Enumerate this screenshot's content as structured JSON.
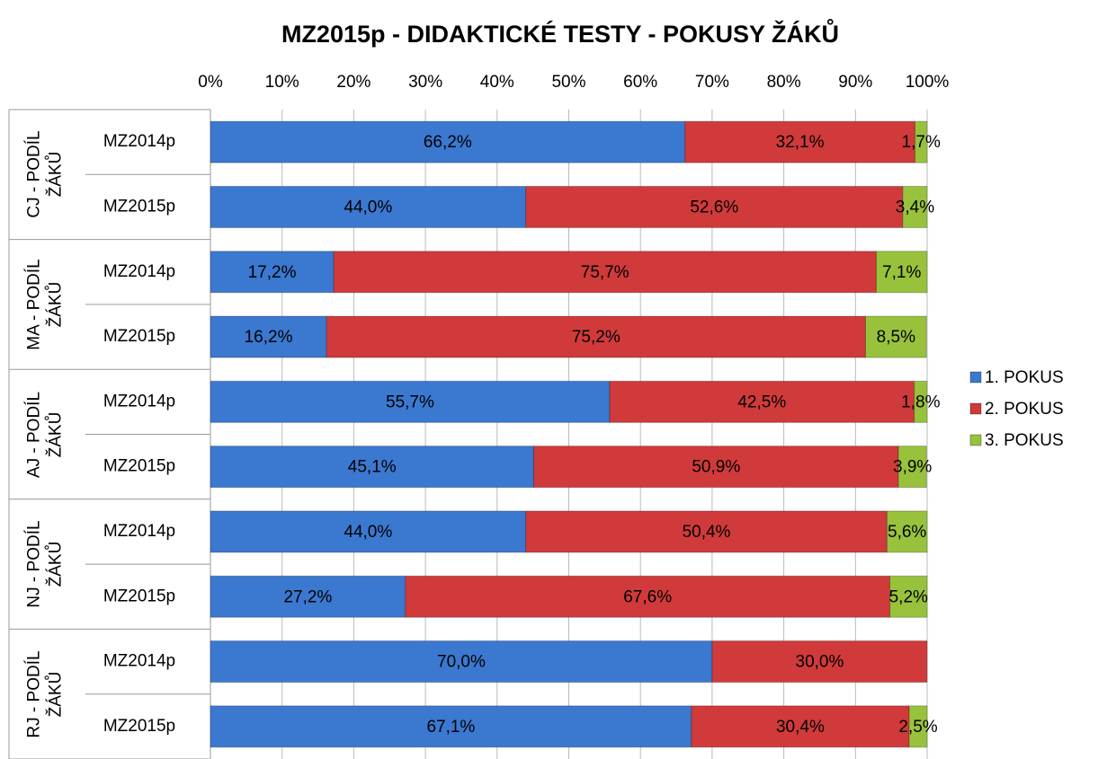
{
  "chart_data": {
    "type": "bar",
    "orientation": "horizontal",
    "stacked": true,
    "title": "MZ2015p - DIDAKTICKÉ TESTY - POKUSY ŽÁKŮ",
    "groups": [
      "CJ - PODÍL ŽÁKŮ",
      "MA - PODÍL ŽÁKŮ",
      "AJ - PODÍL ŽÁKŮ",
      "NJ - PODÍL ŽÁKŮ",
      "RJ - PODÍL ŽÁKŮ"
    ],
    "categories": [
      "MZ2014p",
      "MZ2015p",
      "MZ2014p",
      "MZ2015p",
      "MZ2014p",
      "MZ2015p",
      "MZ2014p",
      "MZ2015p",
      "MZ2014p",
      "MZ2015p"
    ],
    "series": [
      {
        "name": "1. POKUS",
        "color": "#3b78d0",
        "values": [
          66.2,
          44.0,
          17.2,
          16.2,
          55.7,
          45.1,
          44.0,
          27.2,
          70.0,
          67.1
        ],
        "value_labels": [
          "66,2%",
          "44,0%",
          "17,2%",
          "16,2%",
          "55,7%",
          "45,1%",
          "44,0%",
          "27,2%",
          "70,0%",
          "67,1%"
        ]
      },
      {
        "name": "2. POKUS",
        "color": "#d03a3a",
        "values": [
          32.1,
          52.6,
          75.7,
          75.2,
          42.5,
          50.9,
          50.4,
          67.6,
          30.0,
          30.4
        ],
        "value_labels": [
          "32,1%",
          "52,6%",
          "75,7%",
          "75,2%",
          "42,5%",
          "50,9%",
          "50,4%",
          "67,6%",
          "30,0%",
          "30,4%"
        ]
      },
      {
        "name": "3. POKUS",
        "color": "#98c23c",
        "values": [
          1.7,
          3.4,
          7.1,
          8.5,
          1.8,
          3.9,
          5.6,
          5.2,
          null,
          2.5
        ],
        "value_labels": [
          "1,7%",
          "3,4%",
          "7,1%",
          "8,5%",
          "1,8%",
          "3,9%",
          "5,6%",
          "5,2%",
          null,
          "2,5%"
        ]
      }
    ],
    "xlim": [
      0,
      100
    ],
    "xticks": [
      {
        "value": 0,
        "label": "0%"
      },
      {
        "value": 10,
        "label": "10%"
      },
      {
        "value": 20,
        "label": "20%"
      },
      {
        "value": 30,
        "label": "30%"
      },
      {
        "value": 40,
        "label": "40%"
      },
      {
        "value": 50,
        "label": "50%"
      },
      {
        "value": 60,
        "label": "60%"
      },
      {
        "value": 70,
        "label": "70%"
      },
      {
        "value": 80,
        "label": "80%"
      },
      {
        "value": 90,
        "label": "90%"
      },
      {
        "value": 100,
        "label": "100%"
      }
    ],
    "grid": true,
    "legend": "right"
  }
}
